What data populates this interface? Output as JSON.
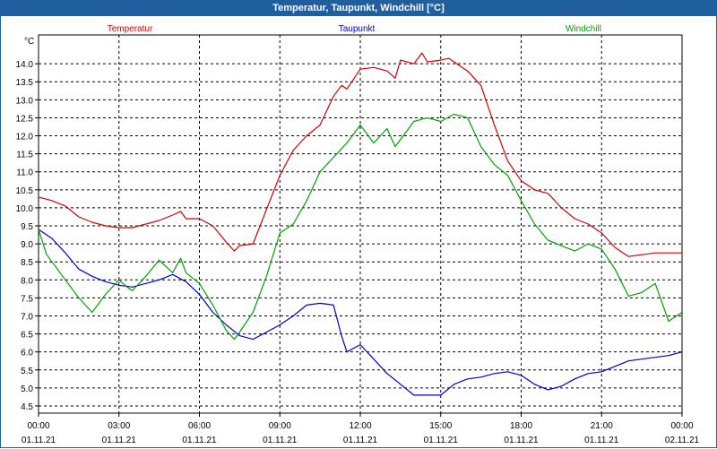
{
  "window": {
    "title": "Temperatur, Taupunkt, Windchill [°C]"
  },
  "chart_data": {
    "type": "line",
    "title": "Temperatur, Taupunkt, Windchill [°C]",
    "ylabel": "°C",
    "ylim": [
      4.3,
      14.8
    ],
    "xlim": [
      0,
      24
    ],
    "grid": true,
    "yticks": [
      "4.5",
      "5.0",
      "5.5",
      "6.0",
      "6.5",
      "7.0",
      "7.5",
      "8.0",
      "8.5",
      "9.0",
      "9.5",
      "10.0",
      "10.5",
      "11.0",
      "11.5",
      "12.0",
      "12.5",
      "13.0",
      "13.5",
      "14.0"
    ],
    "xticks": [
      {
        "time": "00:00",
        "date": "01.11.21"
      },
      {
        "time": "03:00",
        "date": "01.11.21"
      },
      {
        "time": "06:00",
        "date": "01.11.21"
      },
      {
        "time": "09:00",
        "date": "01.11.21"
      },
      {
        "time": "12:00",
        "date": "01.11.21"
      },
      {
        "time": "15:00",
        "date": "01.11.21"
      },
      {
        "time": "18:00",
        "date": "01.11.21"
      },
      {
        "time": "21:00",
        "date": "01.11.21"
      },
      {
        "time": "00:00",
        "date": "02.11.21"
      }
    ],
    "series": [
      {
        "name": "Temperatur",
        "color": "#d40000",
        "x": [
          0,
          0.5,
          1,
          1.5,
          2,
          2.5,
          3,
          3.5,
          4,
          4.5,
          5,
          5.3,
          5.5,
          6,
          6.5,
          7,
          7.3,
          7.5,
          8,
          8.5,
          9,
          9.5,
          10,
          10.5,
          11,
          11.3,
          11.5,
          12,
          12.5,
          13,
          13.3,
          13.5,
          14,
          14.3,
          14.5,
          15,
          15.3,
          15.5,
          16,
          16.5,
          17,
          17.5,
          18,
          18.5,
          19,
          19.5,
          20,
          20.5,
          21,
          21.5,
          22,
          22.5,
          23,
          23.5,
          24
        ],
        "values": [
          10.3,
          10.2,
          10.05,
          9.75,
          9.6,
          9.5,
          9.45,
          9.45,
          9.55,
          9.65,
          9.8,
          9.9,
          9.7,
          9.7,
          9.5,
          9.05,
          8.8,
          8.95,
          9.0,
          9.95,
          10.9,
          11.6,
          12.0,
          12.3,
          13.1,
          13.4,
          13.3,
          13.85,
          13.9,
          13.8,
          13.6,
          14.1,
          14.0,
          14.3,
          14.05,
          14.1,
          14.15,
          14.05,
          13.8,
          13.4,
          12.3,
          11.3,
          10.75,
          10.5,
          10.4,
          10.0,
          9.7,
          9.55,
          9.3,
          8.9,
          8.65,
          8.7,
          8.75,
          8.75,
          8.75
        ]
      },
      {
        "name": "Taupunkt",
        "color": "#0000c8",
        "x": [
          0,
          0.5,
          1,
          1.5,
          2,
          2.5,
          3,
          3.5,
          4,
          4.5,
          5,
          5.5,
          6,
          6.5,
          7,
          7.5,
          8,
          8.5,
          9,
          9.5,
          10,
          10.5,
          11,
          11.3,
          11.5,
          12,
          12.5,
          13,
          13.5,
          14,
          14.5,
          15,
          15.5,
          16,
          16.5,
          17,
          17.5,
          18,
          18.5,
          19,
          19.5,
          20,
          20.5,
          21,
          21.5,
          22,
          22.5,
          23,
          23.5,
          24
        ],
        "values": [
          9.4,
          9.15,
          8.75,
          8.3,
          8.1,
          7.95,
          7.85,
          7.8,
          7.9,
          8.0,
          8.15,
          7.95,
          7.6,
          7.1,
          6.75,
          6.45,
          6.35,
          6.55,
          6.75,
          7.0,
          7.3,
          7.35,
          7.3,
          6.45,
          6.0,
          6.2,
          5.8,
          5.4,
          5.1,
          4.8,
          4.8,
          4.8,
          5.1,
          5.25,
          5.3,
          5.4,
          5.45,
          5.35,
          5.1,
          4.95,
          5.05,
          5.25,
          5.4,
          5.45,
          5.6,
          5.75,
          5.8,
          5.85,
          5.9,
          6.0
        ]
      },
      {
        "name": "Windchill",
        "color": "#00a000",
        "x": [
          0,
          0.3,
          0.6,
          1,
          1.5,
          2,
          2.5,
          3,
          3.3,
          3.5,
          4,
          4.5,
          5,
          5.3,
          5.5,
          6,
          6.5,
          7,
          7.3,
          7.5,
          8,
          8.5,
          9,
          9.5,
          10,
          10.5,
          11,
          11.5,
          12,
          12.5,
          13,
          13.3,
          13.5,
          14,
          14.5,
          15,
          15.5,
          16,
          16.5,
          17,
          17.5,
          18,
          18.5,
          19,
          19.5,
          20,
          20.5,
          21,
          21.5,
          22,
          22.5,
          23,
          23.5,
          24
        ],
        "values": [
          9.4,
          8.7,
          8.4,
          8.0,
          7.5,
          7.1,
          7.6,
          8.0,
          7.8,
          7.7,
          8.1,
          8.55,
          8.2,
          8.6,
          8.2,
          7.9,
          7.3,
          6.6,
          6.35,
          6.55,
          7.1,
          8.1,
          9.3,
          9.55,
          10.2,
          11.0,
          11.4,
          11.8,
          12.3,
          11.8,
          12.2,
          11.7,
          11.9,
          12.4,
          12.5,
          12.4,
          12.6,
          12.5,
          11.7,
          11.2,
          10.9,
          10.2,
          9.55,
          9.1,
          8.95,
          8.8,
          9.0,
          8.85,
          8.3,
          7.55,
          7.65,
          7.9,
          6.85,
          7.1
        ]
      }
    ]
  }
}
